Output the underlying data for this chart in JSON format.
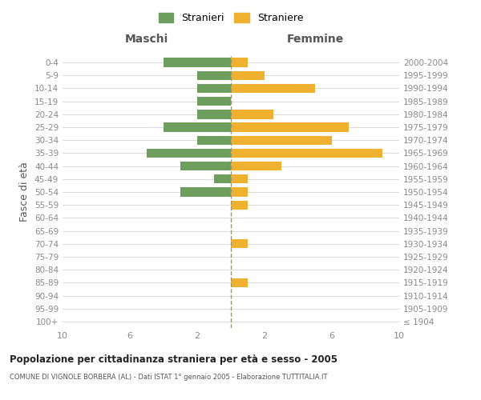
{
  "age_groups": [
    "100+",
    "95-99",
    "90-94",
    "85-89",
    "80-84",
    "75-79",
    "70-74",
    "65-69",
    "60-64",
    "55-59",
    "50-54",
    "45-49",
    "40-44",
    "35-39",
    "30-34",
    "25-29",
    "20-24",
    "15-19",
    "10-14",
    "5-9",
    "0-4"
  ],
  "birth_years": [
    "≤ 1904",
    "1905-1909",
    "1910-1914",
    "1915-1919",
    "1920-1924",
    "1925-1929",
    "1930-1934",
    "1935-1939",
    "1940-1944",
    "1945-1949",
    "1950-1954",
    "1955-1959",
    "1960-1964",
    "1965-1969",
    "1970-1974",
    "1975-1979",
    "1980-1984",
    "1985-1989",
    "1990-1994",
    "1995-1999",
    "2000-2004"
  ],
  "maschi": [
    0,
    0,
    0,
    0,
    0,
    0,
    0,
    0,
    0,
    0,
    3,
    1,
    3,
    5,
    2,
    4,
    2,
    2,
    2,
    2,
    4
  ],
  "femmine": [
    0,
    0,
    0,
    1,
    0,
    0,
    1,
    0,
    0,
    1,
    1,
    1,
    3,
    9,
    6,
    7,
    2.5,
    0,
    5,
    2,
    1
  ],
  "male_color": "#6d9e5e",
  "female_color": "#f0b030",
  "title": "Popolazione per cittadinanza straniera per età e sesso - 2005",
  "subtitle": "COMUNE DI VIGNOLE BORBERA (AL) - Dati ISTAT 1° gennaio 2005 - Elaborazione TUTTITALIA.IT",
  "ylabel_left": "Fasce di età",
  "xlabel_left": "Maschi",
  "xlabel_right": "Femmine",
  "legend_male": "Stranieri",
  "legend_female": "Straniere",
  "xlim": 10,
  "background_color": "#ffffff",
  "grid_color": "#cccccc",
  "axis_label_color": "#555555",
  "tick_color": "#888888"
}
